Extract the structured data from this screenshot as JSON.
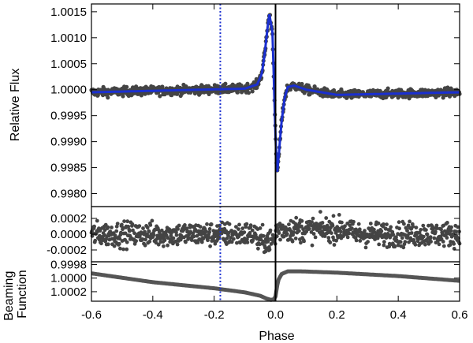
{
  "chart_data": [
    {
      "type": "scatter",
      "panel": "top",
      "ylabel": "Relative Flux",
      "ylim": [
        0.99775,
        1.00165
      ],
      "xlim": [
        -0.6,
        0.6
      ],
      "yticks": [
        0.998,
        0.9985,
        0.999,
        0.9995,
        1.0,
        1.0005,
        1.001,
        1.0015
      ],
      "ytick_labels": [
        "0.9980",
        "0.9985",
        "0.9990",
        "0.9995",
        "1.0000",
        "1.0005",
        "1.0010",
        "1.0015"
      ],
      "series": [
        {
          "kind": "points",
          "color": "#444444",
          "baseline": 1.0,
          "scatter": 6e-05,
          "x": [
            -0.6,
            -0.1,
            -0.06,
            -0.045,
            -0.035,
            -0.025,
            -0.02,
            -0.01,
            0.0,
            0.005,
            0.01,
            0.02,
            0.03,
            0.04,
            0.06,
            0.1,
            0.2,
            0.6
          ],
          "y": [
            0.99995,
            1.00002,
            1.0001,
            1.0003,
            1.0007,
            1.00125,
            1.00145,
            1.0011,
            0.9991,
            0.99835,
            0.9987,
            0.9994,
            0.99985,
            1.00005,
            1.00008,
            1.0,
            0.9999,
            0.99995
          ]
        },
        {
          "kind": "line",
          "color": "#1a2fd0",
          "x": [
            -0.6,
            -0.1,
            -0.06,
            -0.045,
            -0.035,
            -0.025,
            -0.02,
            -0.01,
            0.0,
            0.005,
            0.01,
            0.02,
            0.03,
            0.04,
            0.06,
            0.1,
            0.2,
            0.6
          ],
          "y": [
            0.99995,
            1.00002,
            1.0001,
            1.0003,
            1.0007,
            1.00125,
            1.00145,
            1.0011,
            0.9991,
            0.99835,
            0.9987,
            0.9994,
            0.99985,
            1.00005,
            1.00008,
            1.0,
            0.9999,
            0.99995
          ]
        }
      ]
    },
    {
      "type": "scatter",
      "panel": "residuals",
      "ylim": [
        -0.00035,
        0.00035
      ],
      "yticks": [
        -0.0002,
        0.0,
        0.0002
      ],
      "ytick_labels": [
        "-0.0002",
        "0.0000",
        "0.0002"
      ],
      "series": [
        {
          "kind": "points",
          "color": "#444444",
          "baseline": 0.0,
          "scatter": 0.00011
        }
      ]
    },
    {
      "type": "line",
      "panel": "beaming",
      "ylabel": "Beaming Function",
      "ylim": [
        1.00034,
        0.99976
      ],
      "yticks": [
        0.9998,
        1.0,
        1.0002
      ],
      "ytick_labels": [
        "0.9998",
        "1.0000",
        "1.0002"
      ],
      "series": [
        {
          "kind": "line",
          "color": "#555555",
          "x": [
            -0.6,
            -0.4,
            -0.2,
            -0.1,
            -0.05,
            -0.03,
            -0.015,
            -0.005,
            0.0,
            0.005,
            0.01,
            0.02,
            0.04,
            0.08,
            0.2,
            0.4,
            0.6
          ],
          "y": [
            0.99993,
            1.00006,
            1.00015,
            1.00021,
            1.00026,
            1.0003,
            1.00032,
            1.00031,
            1.00027,
            1.00012,
            1.00002,
            0.99994,
            0.9999,
            0.9999,
            0.99992,
            0.99997,
            1.00004
          ]
        }
      ]
    }
  ],
  "x_axis": {
    "label": "Phase",
    "ticks": [
      -0.6,
      -0.4,
      -0.2,
      0.0,
      0.2,
      0.4,
      0.6
    ],
    "tick_labels": [
      "-0.6",
      "-0.4",
      "-0.2",
      "0.0",
      "0.2",
      "0.4",
      "0.6"
    ]
  },
  "markers": {
    "solid_line_x": 0.0,
    "dotted_line_x": -0.18,
    "solid_color": "#000000",
    "dotted_color": "#1a2fd0"
  }
}
